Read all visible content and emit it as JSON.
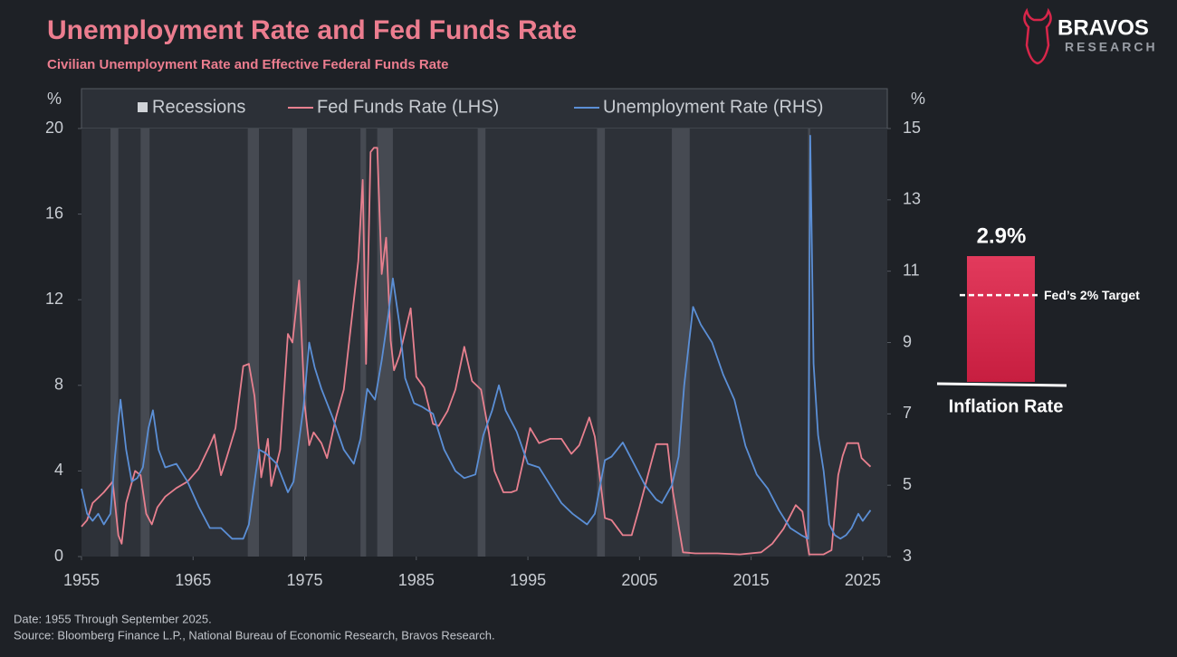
{
  "logo": {
    "name": "BRAVOS",
    "subname": "RESEARCH"
  },
  "chart_data": [
    {
      "type": "line",
      "title": "Unemployment Rate  and Fed Funds Rate",
      "subtitle": "Civilian Unemployment Rate  and Effective Federal Funds Rate",
      "ylabel": "%",
      "y2label": "%",
      "xlim": [
        1955,
        2027.2
      ],
      "xticks": [
        1955,
        1965,
        1975,
        1985,
        1995,
        2005,
        2015,
        2025
      ],
      "ylim": [
        0,
        20
      ],
      "yticks": [
        0,
        4,
        8,
        12,
        16,
        20
      ],
      "y2lim": [
        3,
        15
      ],
      "y2ticks": [
        3,
        5,
        7,
        9,
        11,
        13,
        15
      ],
      "legend": "top",
      "series": [
        {
          "name": "Recessions",
          "type": "band",
          "color": "#464a52",
          "periods": [
            [
              1957.6,
              1958.3
            ],
            [
              1960.3,
              1961.1
            ],
            [
              1969.9,
              1970.9
            ],
            [
              1973.9,
              1975.2
            ],
            [
              1980.0,
              1980.5
            ],
            [
              1981.5,
              1982.9
            ],
            [
              1990.5,
              1991.2
            ],
            [
              2001.2,
              2001.9
            ],
            [
              2007.9,
              2009.5
            ],
            [
              2020.1,
              2020.3
            ]
          ]
        },
        {
          "name": "Fed Funds Rate (LHS)",
          "color": "#e8808f",
          "x": [
            1955,
            1955.5,
            1956,
            1956.5,
            1957,
            1957.8,
            1958.3,
            1958.6,
            1959,
            1959.8,
            1960.3,
            1960.8,
            1961.3,
            1961.8,
            1962.5,
            1963.5,
            1964.5,
            1965.5,
            1966.5,
            1966.9,
            1967.5,
            1968,
            1968.8,
            1969.5,
            1970,
            1970.5,
            1971.1,
            1971.7,
            1972,
            1972.8,
            1973.5,
            1973.9,
            1974.5,
            1975,
            1975.4,
            1975.8,
            1976.5,
            1977,
            1977.8,
            1978.5,
            1979,
            1979.8,
            1980.2,
            1980.5,
            1980.9,
            1981.2,
            1981.5,
            1981.9,
            1982.3,
            1982.7,
            1983,
            1983.5,
            1984.5,
            1985,
            1985.7,
            1986.5,
            1987,
            1987.8,
            1988.5,
            1989.3,
            1990,
            1990.8,
            1991.5,
            1992,
            1992.8,
            1993.5,
            1994,
            1994.6,
            1995.2,
            1996,
            1997,
            1998,
            1998.9,
            1999.6,
            2000.5,
            2001,
            2001.9,
            2002.5,
            2003.5,
            2004.3,
            2005,
            2006,
            2006.5,
            2007.5,
            2008,
            2008.9,
            2010,
            2012,
            2014,
            2015.9,
            2016.9,
            2017.9,
            2019,
            2019.6,
            2020.2,
            2021.5,
            2022.2,
            2022.8,
            2023.2,
            2023.6,
            2024.6,
            2024.9,
            2025.5,
            2025.7
          ],
          "values": [
            1.4,
            1.7,
            2.5,
            2.75,
            3.0,
            3.5,
            1.0,
            0.6,
            2.5,
            4.0,
            3.8,
            2.0,
            1.5,
            2.3,
            2.8,
            3.2,
            3.5,
            4.1,
            5.2,
            5.7,
            3.8,
            4.6,
            6.0,
            8.9,
            9.0,
            7.5,
            3.7,
            5.5,
            3.3,
            5.0,
            10.4,
            10.0,
            12.9,
            7.1,
            5.2,
            5.8,
            5.3,
            4.6,
            6.5,
            7.8,
            10.1,
            13.8,
            17.6,
            9.0,
            18.9,
            19.1,
            19.1,
            13.2,
            14.9,
            10.1,
            8.7,
            9.4,
            11.6,
            8.4,
            7.9,
            6.2,
            6.1,
            6.8,
            7.8,
            9.8,
            8.2,
            7.8,
            5.8,
            4.0,
            3.0,
            3.0,
            3.1,
            4.5,
            6.0,
            5.3,
            5.5,
            5.5,
            4.8,
            5.2,
            6.5,
            5.6,
            1.8,
            1.7,
            1.0,
            1.0,
            2.3,
            4.3,
            5.25,
            5.25,
            3.0,
            0.2,
            0.15,
            0.15,
            0.1,
            0.2,
            0.6,
            1.3,
            2.4,
            2.1,
            0.1,
            0.1,
            0.3,
            3.8,
            4.7,
            5.3,
            5.3,
            4.6,
            4.3,
            4.2
          ]
        },
        {
          "name": "Unemployment Rate (RHS)",
          "color": "#5b8fd6",
          "axis": "y2",
          "x": [
            1955,
            1955.5,
            1956,
            1956.5,
            1957,
            1957.6,
            1958,
            1958.5,
            1959,
            1959.5,
            1960,
            1960.5,
            1961,
            1961.4,
            1961.9,
            1962.5,
            1963.5,
            1964.5,
            1965.5,
            1966.5,
            1967.5,
            1968.5,
            1969.5,
            1970,
            1970.9,
            1971.5,
            1972.5,
            1973.5,
            1974,
            1974.9,
            1975.4,
            1975.9,
            1976.5,
            1977.5,
            1978.5,
            1979.4,
            1980,
            1980.6,
            1981.3,
            1981.9,
            1982.5,
            1982.9,
            1983.5,
            1984,
            1984.8,
            1985.5,
            1986.5,
            1987.5,
            1988.5,
            1989.3,
            1990.3,
            1991,
            1991.8,
            1992.4,
            1993,
            1994,
            1995,
            1996,
            1997,
            1998,
            1999,
            2000.3,
            2001,
            2001.9,
            2002.5,
            2003.5,
            2004.5,
            2005.5,
            2006.5,
            2007,
            2007.9,
            2008.5,
            2009,
            2009.8,
            2010.5,
            2011.5,
            2012.5,
            2013.5,
            2014.5,
            2015.5,
            2016.5,
            2017.5,
            2018.5,
            2019.5,
            2020.1,
            2020.3,
            2020.6,
            2021,
            2021.5,
            2022,
            2022.5,
            2023,
            2023.5,
            2024,
            2024.6,
            2025,
            2025.7
          ],
          "values": [
            4.9,
            4.2,
            4.0,
            4.2,
            3.9,
            4.2,
            5.8,
            7.4,
            6.0,
            5.1,
            5.2,
            5.5,
            6.6,
            7.1,
            6.0,
            5.5,
            5.6,
            5.1,
            4.4,
            3.8,
            3.8,
            3.5,
            3.5,
            3.9,
            6.0,
            5.9,
            5.6,
            4.8,
            5.1,
            7.2,
            9.0,
            8.3,
            7.7,
            6.9,
            6.0,
            5.6,
            6.3,
            7.7,
            7.4,
            8.5,
            9.8,
            10.8,
            9.5,
            8.0,
            7.3,
            7.2,
            7.0,
            6.0,
            5.4,
            5.2,
            5.3,
            6.4,
            7.1,
            7.8,
            7.1,
            6.5,
            5.6,
            5.5,
            5.0,
            4.5,
            4.2,
            3.9,
            4.2,
            5.7,
            5.8,
            6.2,
            5.6,
            5.0,
            4.6,
            4.5,
            5.0,
            5.8,
            7.8,
            10.0,
            9.5,
            9.0,
            8.1,
            7.4,
            6.1,
            5.3,
            4.9,
            4.3,
            3.8,
            3.6,
            3.5,
            14.8,
            8.4,
            6.4,
            5.4,
            3.9,
            3.6,
            3.5,
            3.6,
            3.8,
            4.2,
            4.0,
            4.3
          ]
        }
      ],
      "notes": [
        "Date: 1955 Through September 2025.",
        "Source: Bloomberg Finance L.P., National Bureau of Economic Research, Bravos Research."
      ]
    },
    {
      "type": "bar",
      "categories": [
        "Inflation Rate"
      ],
      "values": [
        2.9
      ],
      "value_labels": [
        "2.9%"
      ],
      "color": "#d8264a",
      "ylim": [
        0,
        3.3
      ],
      "target": {
        "value": 2,
        "label": "Fed’s 2% Target"
      }
    }
  ]
}
